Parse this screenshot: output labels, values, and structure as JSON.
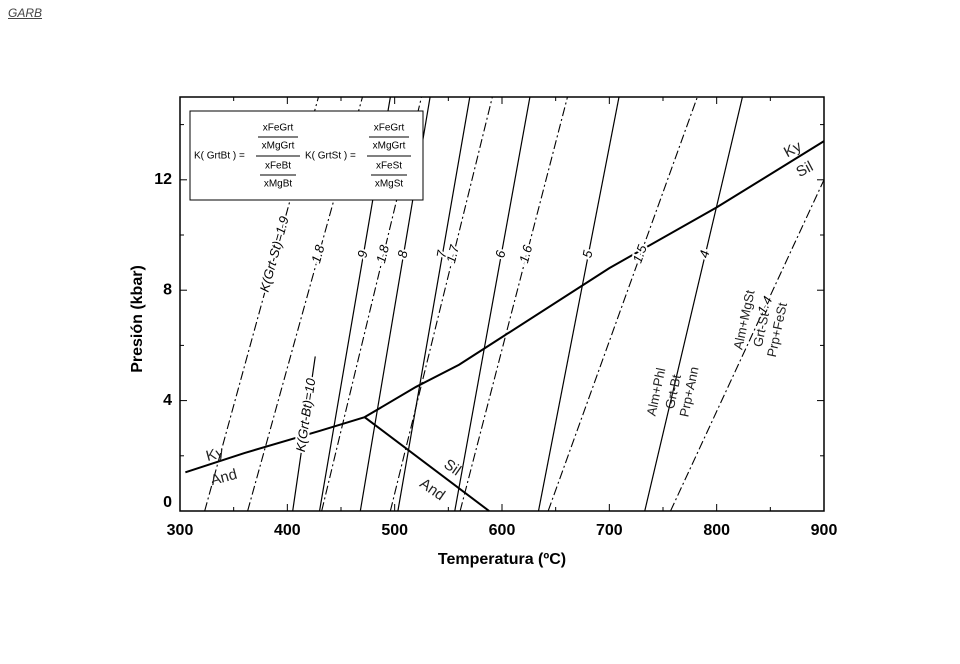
{
  "header": "GARB",
  "chart_data": {
    "type": "line",
    "xlabel": "Temperatura (ºC)",
    "ylabel": "Presión (kbar)",
    "xlim": [
      300,
      900
    ],
    "ylim": [
      0,
      15
    ],
    "xticks": [
      300,
      400,
      500,
      600,
      700,
      800,
      900
    ],
    "yticks": [
      0,
      4,
      8,
      12
    ],
    "xminorticks": [
      350,
      450,
      550,
      650,
      750,
      850
    ],
    "yminorticks": [
      2,
      6,
      10,
      14
    ],
    "color": "#000000",
    "series": [
      {
        "style": "bold",
        "x": [
          305,
          360,
          430,
          472
        ],
        "y": [
          1.4,
          2.1,
          2.9,
          3.4
        ]
      },
      {
        "style": "bold",
        "x": [
          472,
          520,
          560,
          600,
          700,
          800,
          900
        ],
        "y": [
          3.4,
          4.5,
          5.3,
          6.3,
          8.8,
          11,
          13.4
        ]
      },
      {
        "style": "bold",
        "x": [
          472,
          588
        ],
        "y": [
          3.4,
          0
        ]
      },
      {
        "name": "K(Grt-St)=1.9",
        "style": "dashdot",
        "x": [
          323,
          429
        ],
        "y": [
          0,
          15
        ]
      },
      {
        "name": "1.8",
        "style": "dashdot",
        "x": [
          363,
          470
        ],
        "y": [
          0,
          15
        ]
      },
      {
        "name": "1.8",
        "style": "dashdot",
        "x": [
          432,
          525
        ],
        "y": [
          0,
          15
        ]
      },
      {
        "name": "1.7",
        "style": "dashdot",
        "x": [
          496,
          591
        ],
        "y": [
          0,
          15
        ]
      },
      {
        "name": "1.6",
        "style": "dashdot",
        "x": [
          561,
          661
        ],
        "y": [
          0,
          15
        ]
      },
      {
        "name": "1.5",
        "style": "dashdot",
        "x": [
          643,
          782
        ],
        "y": [
          0,
          15
        ]
      },
      {
        "name": "1.4",
        "style": "dashdot",
        "x": [
          757,
          900
        ],
        "y": [
          0,
          12
        ]
      },
      {
        "name": "K(Grt-Bt)=10",
        "style": "solid",
        "x": [
          405,
          426
        ],
        "y": [
          0,
          5.6
        ]
      },
      {
        "name": "9",
        "style": "solid",
        "x": [
          430,
          496
        ],
        "y": [
          0,
          15
        ]
      },
      {
        "name": "8",
        "style": "solid",
        "x": [
          468,
          533
        ],
        "y": [
          0,
          15
        ]
      },
      {
        "name": "7",
        "style": "solid",
        "x": [
          503,
          570
        ],
        "y": [
          0,
          15
        ]
      },
      {
        "name": "6",
        "style": "solid",
        "x": [
          556,
          626
        ],
        "y": [
          0,
          15
        ]
      },
      {
        "name": "5",
        "style": "solid",
        "x": [
          634,
          709
        ],
        "y": [
          0,
          15
        ]
      },
      {
        "name": "4",
        "style": "solid",
        "x": [
          733,
          824
        ],
        "y": [
          0,
          15
        ]
      }
    ],
    "annotations": [
      {
        "text": "Ky"
      },
      {
        "text": "And"
      },
      {
        "text": "Sil"
      },
      {
        "text": "And"
      },
      {
        "text": "Ky"
      },
      {
        "text": "Sil"
      },
      {
        "text": "Alm+Phl"
      },
      {
        "text": "Grt-Bt"
      },
      {
        "text": "Prp+Ann"
      },
      {
        "text": "Alm+MgSt"
      },
      {
        "text": "Grt-St"
      },
      {
        "text": "Prp+FeSt"
      }
    ],
    "formula": {
      "bt": {
        "lhs": "K( GrtBt ) =",
        "num_top": "xFeGrt",
        "num_bottom": "xMgGrt",
        "den_top": "xFeBt",
        "den_bottom": "xMgBt"
      },
      "st": {
        "lhs": "K( GrtSt ) =",
        "num_top": "xFeGrt",
        "num_bottom": "xMgGrt",
        "den_top": "xFeSt",
        "den_bottom": "xMgSt"
      }
    }
  }
}
